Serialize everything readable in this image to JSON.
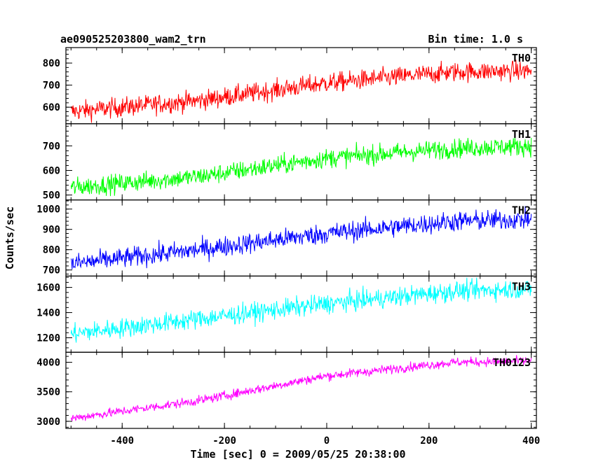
{
  "header": {
    "title": "ae090525203800_wam2_trn",
    "bin_time": "Bin time: 1.0 s"
  },
  "chart_data": {
    "type": "line",
    "xlabel": "Time [sec] 0 = 2009/05/25 20:38:00",
    "ylabel": "Counts/sec",
    "xlim": [
      -510,
      410
    ],
    "x_ticks": [
      -400,
      -200,
      0,
      200,
      400
    ],
    "x_range": [
      -500,
      400
    ],
    "panels": [
      {
        "name": "TH0",
        "color": "#ff0000",
        "ylim": [
          525,
          870
        ],
        "y_ticks": [
          600,
          700,
          800
        ],
        "trend": [
          [
            -500,
            580
          ],
          [
            -250,
            630
          ],
          [
            0,
            710
          ],
          [
            250,
            760
          ],
          [
            400,
            765
          ]
        ],
        "noise": 40
      },
      {
        "name": "TH1",
        "color": "#00ff00",
        "ylim": [
          480,
          790
        ],
        "y_ticks": [
          500,
          600,
          700
        ],
        "trend": [
          [
            -500,
            530
          ],
          [
            -250,
            575
          ],
          [
            0,
            650
          ],
          [
            250,
            690
          ],
          [
            400,
            700
          ]
        ],
        "noise": 35
      },
      {
        "name": "TH2",
        "color": "#0000ff",
        "ylim": [
          670,
          1045
        ],
        "y_ticks": [
          700,
          800,
          900,
          1000
        ],
        "trend": [
          [
            -500,
            730
          ],
          [
            -250,
            800
          ],
          [
            0,
            880
          ],
          [
            250,
            940
          ],
          [
            400,
            950
          ]
        ],
        "noise": 45
      },
      {
        "name": "TH3",
        "color": "#00ffff",
        "ylim": [
          1085,
          1690
        ],
        "y_ticks": [
          1200,
          1400,
          1600
        ],
        "trend": [
          [
            -500,
            1230
          ],
          [
            -250,
            1350
          ],
          [
            0,
            1470
          ],
          [
            250,
            1570
          ],
          [
            400,
            1590
          ]
        ],
        "noise": 70
      },
      {
        "name": "TH0123",
        "color": "#ff00ff",
        "ylim": [
          2880,
          4170
        ],
        "y_ticks": [
          3000,
          3500,
          4000
        ],
        "trend": [
          [
            -500,
            3050
          ],
          [
            -250,
            3350
          ],
          [
            0,
            3770
          ],
          [
            250,
            4000
          ],
          [
            400,
            4020
          ]
        ],
        "noise": 70
      }
    ]
  }
}
